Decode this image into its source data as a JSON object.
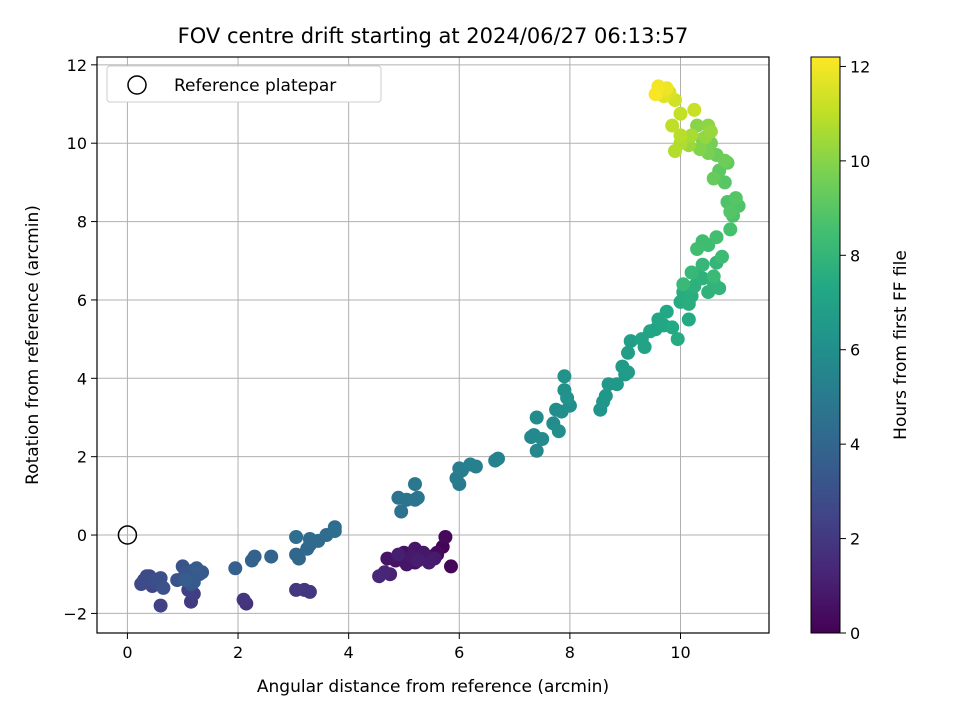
{
  "chart_data": {
    "type": "scatter",
    "title": "FOV centre drift starting at 2024/06/27 06:13:57",
    "xlabel": "Angular distance from reference (arcmin)",
    "ylabel": "Rotation from reference (arcmin)",
    "xlim": [
      -0.55,
      11.6
    ],
    "ylim": [
      -2.5,
      12.2
    ],
    "xticks": [
      0,
      2,
      4,
      6,
      8,
      10
    ],
    "yticks": [
      -2,
      0,
      2,
      4,
      6,
      8,
      10,
      12
    ],
    "grid": true,
    "legend": {
      "position": "top-left",
      "entries": [
        {
          "label": "Reference platepar",
          "marker": "open-circle"
        }
      ]
    },
    "reference_point": {
      "x": 0,
      "y": 0
    },
    "colorbar": {
      "label": "Hours from first FF file",
      "colormap": "viridis",
      "range": [
        0,
        12.2
      ],
      "ticks": [
        0,
        2,
        4,
        6,
        8,
        10,
        12
      ]
    },
    "points": [
      [
        5.6,
        -0.5,
        0.1
      ],
      [
        5.7,
        -0.3,
        0.15
      ],
      [
        5.85,
        -0.8,
        0.2
      ],
      [
        5.75,
        -0.05,
        0.25
      ],
      [
        5.6,
        -0.45,
        0.3
      ],
      [
        5.5,
        -0.55,
        0.35
      ],
      [
        5.3,
        -0.5,
        0.4
      ],
      [
        5.2,
        -0.7,
        0.45
      ],
      [
        5.1,
        -0.6,
        0.5
      ],
      [
        5.0,
        -0.45,
        0.55
      ],
      [
        4.85,
        -0.65,
        0.6
      ],
      [
        4.7,
        -0.6,
        0.65
      ],
      [
        5.05,
        -0.75,
        0.7
      ],
      [
        5.2,
        -0.35,
        0.75
      ],
      [
        5.35,
        -0.45,
        0.8
      ],
      [
        5.15,
        -0.55,
        0.85
      ],
      [
        5.55,
        -0.6,
        0.9
      ],
      [
        5.45,
        -0.7,
        0.95
      ],
      [
        5.25,
        -0.65,
        1.0
      ],
      [
        4.9,
        -0.5,
        1.05
      ],
      [
        4.75,
        -1.0,
        1.15
      ],
      [
        4.65,
        -0.95,
        1.25
      ],
      [
        4.55,
        -1.05,
        1.35
      ],
      [
        2.15,
        -1.75,
        1.75
      ],
      [
        2.1,
        -1.65,
        1.85
      ],
      [
        3.3,
        -1.45,
        1.9
      ],
      [
        3.2,
        -1.4,
        1.95
      ],
      [
        3.05,
        -1.4,
        2.0
      ],
      [
        1.15,
        -1.7,
        2.1
      ],
      [
        1.2,
        -1.5,
        2.2
      ],
      [
        1.1,
        -1.4,
        2.3
      ],
      [
        0.6,
        -1.8,
        2.4
      ],
      [
        0.55,
        -1.25,
        2.5
      ],
      [
        0.45,
        -1.3,
        2.55
      ],
      [
        0.35,
        -1.2,
        2.6
      ],
      [
        0.35,
        -1.05,
        2.65
      ],
      [
        0.3,
        -1.15,
        2.7
      ],
      [
        0.25,
        -1.25,
        2.75
      ],
      [
        0.4,
        -1.05,
        2.8
      ],
      [
        0.45,
        -1.15,
        2.85
      ],
      [
        0.5,
        -1.2,
        2.9
      ],
      [
        0.55,
        -1.15,
        2.95
      ],
      [
        0.6,
        -1.1,
        3.0
      ],
      [
        0.65,
        -1.35,
        3.05
      ],
      [
        0.9,
        -1.15,
        3.1
      ],
      [
        1.0,
        -0.8,
        3.15
      ],
      [
        1.05,
        -0.95,
        3.2
      ],
      [
        1.15,
        -1.25,
        3.25
      ],
      [
        1.2,
        -0.9,
        3.3
      ],
      [
        1.3,
        -1.0,
        3.35
      ],
      [
        1.35,
        -0.95,
        3.4
      ],
      [
        1.2,
        -1.2,
        3.45
      ],
      [
        1.25,
        -0.85,
        3.5
      ],
      [
        1.05,
        -1.15,
        3.55
      ],
      [
        1.95,
        -0.85,
        3.7
      ],
      [
        2.3,
        -0.55,
        3.8
      ],
      [
        2.25,
        -0.65,
        3.85
      ],
      [
        2.6,
        -0.55,
        3.9
      ],
      [
        3.05,
        -0.5,
        4.0
      ],
      [
        3.1,
        -0.6,
        4.05
      ],
      [
        3.25,
        -0.35,
        4.1
      ],
      [
        3.3,
        -0.25,
        4.15
      ],
      [
        3.45,
        -0.15,
        4.2
      ],
      [
        3.3,
        -0.1,
        4.25
      ],
      [
        3.6,
        0.0,
        4.3
      ],
      [
        3.75,
        0.2,
        4.35
      ],
      [
        3.05,
        -0.05,
        4.4
      ],
      [
        3.75,
        0.1,
        4.45
      ],
      [
        4.95,
        0.6,
        4.6
      ],
      [
        4.9,
        0.95,
        4.65
      ],
      [
        5.05,
        0.9,
        4.7
      ],
      [
        5.2,
        0.9,
        4.75
      ],
      [
        5.25,
        0.95,
        4.8
      ],
      [
        5.2,
        1.3,
        4.85
      ],
      [
        6.0,
        1.3,
        5.0
      ],
      [
        5.95,
        1.45,
        5.05
      ],
      [
        6.05,
        1.65,
        5.1
      ],
      [
        6.0,
        1.7,
        5.15
      ],
      [
        6.3,
        1.75,
        5.2
      ],
      [
        6.2,
        1.8,
        5.25
      ],
      [
        6.65,
        1.9,
        5.35
      ],
      [
        6.7,
        1.95,
        5.4
      ],
      [
        7.3,
        2.5,
        5.6
      ],
      [
        7.4,
        2.15,
        5.65
      ],
      [
        7.35,
        2.55,
        5.7
      ],
      [
        7.5,
        2.45,
        5.75
      ],
      [
        7.4,
        3.0,
        5.8
      ],
      [
        7.7,
        2.85,
        5.85
      ],
      [
        7.75,
        3.2,
        5.9
      ],
      [
        7.85,
        3.15,
        5.95
      ],
      [
        7.8,
        2.65,
        6.0
      ],
      [
        8.0,
        3.3,
        6.05
      ],
      [
        7.9,
        3.7,
        6.1
      ],
      [
        7.95,
        3.5,
        6.15
      ],
      [
        7.9,
        4.05,
        6.2
      ],
      [
        8.55,
        3.2,
        6.3
      ],
      [
        8.6,
        3.4,
        6.35
      ],
      [
        8.65,
        3.55,
        6.4
      ],
      [
        8.7,
        3.85,
        6.45
      ],
      [
        8.85,
        3.85,
        6.5
      ],
      [
        9.0,
        4.1,
        6.6
      ],
      [
        8.95,
        4.3,
        6.65
      ],
      [
        9.05,
        4.15,
        6.7
      ],
      [
        9.05,
        4.65,
        6.75
      ],
      [
        9.1,
        4.95,
        6.8
      ],
      [
        9.3,
        5.0,
        7.0
      ],
      [
        9.35,
        4.8,
        7.05
      ],
      [
        9.45,
        5.2,
        7.1
      ],
      [
        9.55,
        5.25,
        7.15
      ],
      [
        9.6,
        5.5,
        7.2
      ],
      [
        9.7,
        5.35,
        7.25
      ],
      [
        9.75,
        5.7,
        7.3
      ],
      [
        9.85,
        5.3,
        7.35
      ],
      [
        10.15,
        5.5,
        7.4
      ],
      [
        9.95,
        5.0,
        7.45
      ],
      [
        10.0,
        5.95,
        7.5
      ],
      [
        10.05,
        6.2,
        7.55
      ],
      [
        10.15,
        5.9,
        7.6
      ],
      [
        10.2,
        6.1,
        7.65
      ],
      [
        10.25,
        6.35,
        7.7
      ],
      [
        10.3,
        6.6,
        7.75
      ],
      [
        10.4,
        6.55,
        7.8
      ],
      [
        10.5,
        6.2,
        7.85
      ],
      [
        10.6,
        6.45,
        7.9
      ],
      [
        10.7,
        6.3,
        7.95
      ],
      [
        10.65,
        6.95,
        8.0
      ],
      [
        10.4,
        6.9,
        8.05
      ],
      [
        10.2,
        6.7,
        8.1
      ],
      [
        10.05,
        6.4,
        8.15
      ],
      [
        10.6,
        6.6,
        8.2
      ],
      [
        10.75,
        7.1,
        8.3
      ],
      [
        10.5,
        7.4,
        8.35
      ],
      [
        10.4,
        7.5,
        8.4
      ],
      [
        10.3,
        7.3,
        8.45
      ],
      [
        10.65,
        7.6,
        8.5
      ],
      [
        10.9,
        7.8,
        8.6
      ],
      [
        10.95,
        8.15,
        8.7
      ],
      [
        10.85,
        8.5,
        8.75
      ],
      [
        11.05,
        8.4,
        8.8
      ],
      [
        10.9,
        8.25,
        8.9
      ],
      [
        11.0,
        8.6,
        8.95
      ],
      [
        10.8,
        9.0,
        9.0
      ],
      [
        10.7,
        9.3,
        9.1
      ],
      [
        10.85,
        9.5,
        9.2
      ],
      [
        10.6,
        9.1,
        9.3
      ],
      [
        10.65,
        9.7,
        9.4
      ],
      [
        10.8,
        9.55,
        9.5
      ],
      [
        10.55,
        10.0,
        9.6
      ],
      [
        10.5,
        9.75,
        9.7
      ],
      [
        10.4,
        10.1,
        9.8
      ],
      [
        10.35,
        9.85,
        9.9
      ],
      [
        10.3,
        10.45,
        10.0
      ],
      [
        10.5,
        10.45,
        10.1
      ],
      [
        10.45,
        10.15,
        10.2
      ],
      [
        10.55,
        10.3,
        10.3
      ],
      [
        10.15,
        9.95,
        10.4
      ],
      [
        10.05,
        10.15,
        10.5
      ],
      [
        10.2,
        10.2,
        10.6
      ],
      [
        10.0,
        10.0,
        10.7
      ],
      [
        9.9,
        9.8,
        10.8
      ],
      [
        10.0,
        10.2,
        10.9
      ],
      [
        9.85,
        10.45,
        11.0
      ],
      [
        10.0,
        10.75,
        11.1
      ],
      [
        10.25,
        10.85,
        11.2
      ],
      [
        9.9,
        11.1,
        11.35
      ],
      [
        9.8,
        11.3,
        11.5
      ],
      [
        9.7,
        11.2,
        11.6
      ],
      [
        9.65,
        11.3,
        11.75
      ],
      [
        9.75,
        11.4,
        11.9
      ],
      [
        9.6,
        11.45,
        12.0
      ],
      [
        9.55,
        11.25,
        12.1
      ]
    ]
  }
}
